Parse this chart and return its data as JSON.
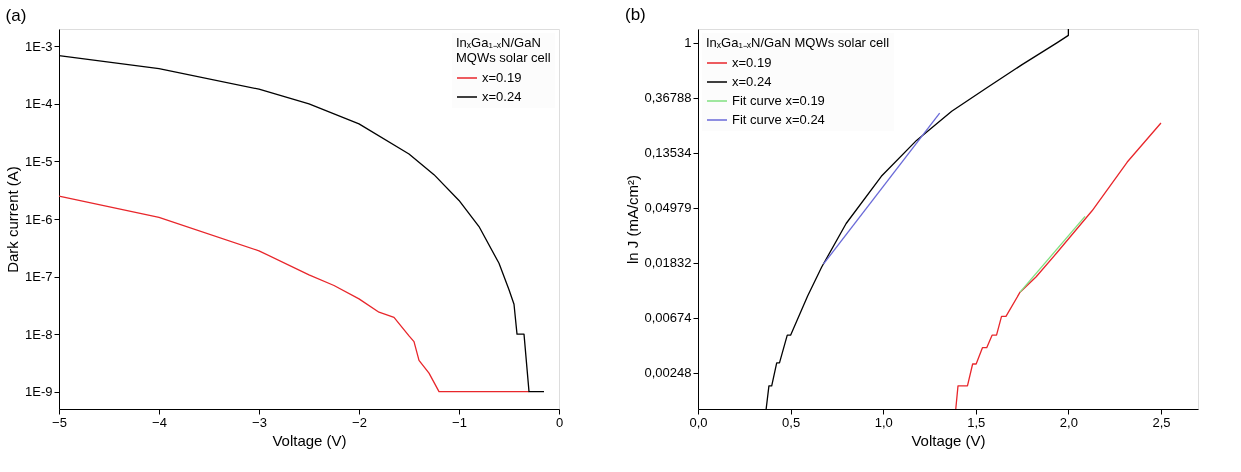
{
  "chart_data": [
    {
      "type": "line",
      "title": "(a)",
      "xlabel": "Voltage (V)",
      "ylabel": "Dark current (A)",
      "legend_title": [
        "InₓGa₁₋ₓN/GaN",
        "MQWs solar cell"
      ],
      "legend": "top right",
      "log": "y",
      "grid": false,
      "line_style": "solid",
      "marker": "none",
      "xlim": [
        -5,
        0
      ],
      "xticks": [
        -5,
        -4,
        -3,
        -2,
        -1,
        0
      ],
      "ylim": [
        5e-10,
        0.002
      ],
      "yticks": [
        {
          "value": 1e-09,
          "label": "1E-9"
        },
        {
          "value": 1e-08,
          "label": "1E-8"
        },
        {
          "value": 1e-07,
          "label": "1E-7"
        },
        {
          "value": 1e-06,
          "label": "1E-6"
        },
        {
          "value": 1e-05,
          "label": "1E-5"
        },
        {
          "value": 0.0001,
          "label": "1E-4"
        },
        {
          "value": 0.001,
          "label": "1E-3"
        }
      ],
      "series": [
        {
          "name": "x=0.19",
          "color": "#e8262b",
          "x": [
            -5,
            -4,
            -3,
            -2.5,
            -2.25,
            -2,
            -1.8,
            -1.65,
            -1.5,
            -1.45,
            -1.4,
            -1.3,
            -1.2,
            -0.3
          ],
          "values": [
            2.5e-06,
            1.07e-06,
            2.8e-07,
            1.07e-07,
            7e-08,
            4.1e-08,
            2.4e-08,
            1.96e-08,
            9.3e-09,
            7.4e-09,
            3.5e-09,
            2.1e-09,
            1e-09,
            1e-09
          ]
        },
        {
          "name": "x=0.24",
          "color": "#000000",
          "x": [
            -5,
            -4,
            -3,
            -2.5,
            -2,
            -1.5,
            -1.25,
            -1,
            -0.8,
            -0.6,
            -0.5,
            -0.45,
            -0.42,
            -0.35,
            -0.3,
            -0.15
          ],
          "values": [
            0.00069,
            0.00041,
            0.00018,
            0.0001,
            4.5e-05,
            1.35e-05,
            5.9e-06,
            2.1e-06,
            7.4e-07,
            1.7e-07,
            5.9e-08,
            3.3e-08,
            1e-08,
            1e-08,
            1e-09,
            1e-09
          ]
        }
      ]
    },
    {
      "type": "line",
      "title": "(b)",
      "xlabel": "Voltage (V)",
      "ylabel": "ln J (mA/cm²)",
      "legend_title": "InₓGa₁₋ₓN/GaN MQWs solar cell",
      "legend": "top left",
      "log": "y",
      "grid": false,
      "line_style": "solid",
      "marker": "none",
      "xlim": [
        0,
        2.7
      ],
      "xticks": [
        {
          "value": 0,
          "label": "0,0"
        },
        {
          "value": 0.5,
          "label": "0,5"
        },
        {
          "value": 1.0,
          "label": "1,0"
        },
        {
          "value": 1.5,
          "label": "1,5"
        },
        {
          "value": 2.0,
          "label": "2,0"
        },
        {
          "value": 2.5,
          "label": "2,5"
        }
      ],
      "ylim": [
        0.00128,
        1.28
      ],
      "yticks": [
        {
          "value": 0.00248,
          "label": "0,00248"
        },
        {
          "value": 0.00674,
          "label": "0,00674"
        },
        {
          "value": 0.01832,
          "label": "0,01832"
        },
        {
          "value": 0.04979,
          "label": "0,04979"
        },
        {
          "value": 0.13534,
          "label": "0,13534"
        },
        {
          "value": 0.36788,
          "label": "0,36788"
        },
        1
      ],
      "series": [
        {
          "name": "x=0.19",
          "color": "#e8262b",
          "x": [
            1.392,
            1.404,
            1.455,
            1.483,
            1.502,
            1.536,
            1.559,
            1.588,
            1.612,
            1.639,
            1.663,
            1.739,
            1.825,
            1.939,
            2.128,
            2.318,
            2.5
          ],
          "values": [
            0.00128,
            0.00195,
            0.00195,
            0.0029,
            0.0029,
            0.0039,
            0.0039,
            0.0049,
            0.0049,
            0.0069,
            0.0069,
            0.0107,
            0.0141,
            0.022,
            0.047,
            0.114,
            0.232
          ]
        },
        {
          "name": "x=0.24",
          "color": "#000000",
          "x": [
            0.368,
            0.383,
            0.398,
            0.425,
            0.44,
            0.482,
            0.5,
            0.592,
            0.668,
            0.8,
            0.99,
            1.18,
            1.37,
            1.56,
            1.75,
            1.94,
            2.0,
            2.0
          ],
          "values": [
            0.00128,
            0.00195,
            0.00195,
            0.00296,
            0.00296,
            0.0049,
            0.0049,
            0.01,
            0.0169,
            0.0373,
            0.088,
            0.169,
            0.287,
            0.44,
            0.67,
            1.0,
            1.14,
            1.28
          ]
        },
        {
          "name": "Fit curve x=0.19",
          "color": "#80e080",
          "x": [
            1.739,
            2.09
          ],
          "values": [
            0.0107,
            0.0425
          ]
        },
        {
          "name": "Fit curve x=0.24",
          "color": "#6a6ad8",
          "x": [
            0.677,
            1.305
          ],
          "values": [
            0.0178,
            0.277
          ]
        }
      ]
    }
  ]
}
